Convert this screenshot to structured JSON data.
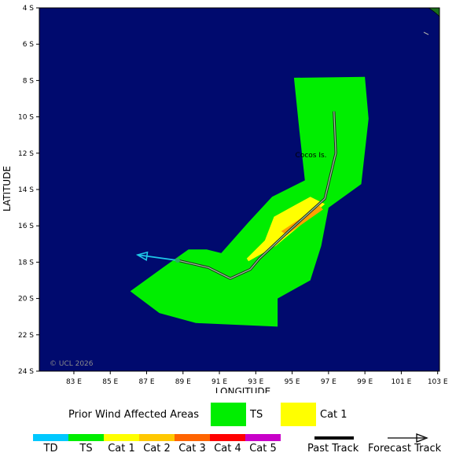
{
  "map": {
    "xlabel": "LONGITUDE",
    "ylabel": "LATITUDE",
    "x_ticks": [
      {
        "lon": 83,
        "label": "83 E"
      },
      {
        "lon": 85,
        "label": "85 E"
      },
      {
        "lon": 87,
        "label": "87 E"
      },
      {
        "lon": 89,
        "label": "89 E"
      },
      {
        "lon": 91,
        "label": "91 E"
      },
      {
        "lon": 93,
        "label": "93 E"
      },
      {
        "lon": 95,
        "label": "95 E"
      },
      {
        "lon": 97,
        "label": "97 E"
      },
      {
        "lon": 99,
        "label": "99 E"
      },
      {
        "lon": 101,
        "label": "101 E"
      },
      {
        "lon": 103,
        "label": "103 E"
      }
    ],
    "y_ticks": [
      {
        "lat": -4,
        "label": "4 S"
      },
      {
        "lat": -6,
        "label": "6 S"
      },
      {
        "lat": -8,
        "label": "8 S"
      },
      {
        "lat": -10,
        "label": "10 S"
      },
      {
        "lat": -12,
        "label": "12 S"
      },
      {
        "lat": -14,
        "label": "14 S"
      },
      {
        "lat": -16,
        "label": "16 S"
      },
      {
        "lat": -18,
        "label": "18 S"
      },
      {
        "lat": -20,
        "label": "20 S"
      },
      {
        "lat": -22,
        "label": "22 S"
      },
      {
        "lat": -24,
        "label": "24 S"
      }
    ],
    "lon_range": [
      81.1,
      103.1
    ],
    "lat_range": [
      -24,
      -4
    ],
    "ocean_color": "#000a6e",
    "place_label": "Cocos Is.",
    "place": {
      "lon": 96.9,
      "lat": -12.1
    },
    "copyright": "© UCL 2026",
    "wind_areas": [
      {
        "category": "TS",
        "color": "#00ee00",
        "polygon": [
          [
            95.1,
            -7.85
          ],
          [
            99.0,
            -7.8
          ],
          [
            99.2,
            -10.1
          ],
          [
            98.8,
            -13.7
          ],
          [
            97.0,
            -15.0
          ],
          [
            96.6,
            -17.1
          ],
          [
            96.0,
            -19.0
          ],
          [
            94.2,
            -20.0
          ],
          [
            94.2,
            -21.55
          ],
          [
            89.7,
            -21.35
          ],
          [
            87.7,
            -20.8
          ],
          [
            86.1,
            -19.6
          ],
          [
            87.9,
            -18.3
          ],
          [
            89.3,
            -17.3
          ],
          [
            90.3,
            -17.3
          ],
          [
            91.1,
            -17.5
          ],
          [
            92.6,
            -15.8
          ],
          [
            93.9,
            -14.4
          ],
          [
            95.7,
            -13.5
          ],
          [
            95.4,
            -10.8
          ]
        ]
      },
      {
        "category": "Cat 1",
        "color": "#ffff00",
        "polygon": [
          [
            96.0,
            -14.4
          ],
          [
            96.8,
            -14.8
          ],
          [
            95.3,
            -16.1
          ],
          [
            94.1,
            -17.1
          ],
          [
            92.6,
            -17.95
          ],
          [
            92.5,
            -17.8
          ],
          [
            93.5,
            -16.8
          ],
          [
            94.0,
            -15.5
          ]
        ]
      }
    ],
    "intensity_band": {
      "color": "#ffa000",
      "polygon": [
        [
          96.5,
          -14.9
        ],
        [
          96.7,
          -15.1
        ],
        [
          94.7,
          -16.5
        ],
        [
          94.4,
          -16.3
        ]
      ]
    },
    "past_track": [
      [
        97.3,
        -9.7
      ],
      [
        97.4,
        -12.0
      ],
      [
        96.8,
        -14.5
      ],
      [
        94.8,
        -16.3
      ],
      [
        93.2,
        -17.8
      ],
      [
        92.7,
        -18.4
      ],
      [
        91.6,
        -18.9
      ],
      [
        90.4,
        -18.3
      ],
      [
        88.7,
        -17.9
      ]
    ],
    "forecast_track": {
      "color": "#1ec8e8",
      "start": [
        88.7,
        -17.9
      ],
      "end": [
        86.5,
        -17.6
      ]
    }
  },
  "legend": {
    "prior_label": "Prior Wind Affected Areas",
    "prior_items": [
      {
        "label": "TS",
        "color": "#00ee00"
      },
      {
        "label": "Cat 1",
        "color": "#ffff00"
      }
    ],
    "scale": [
      {
        "label": "TD",
        "color": "#00c8ff"
      },
      {
        "label": "TS",
        "color": "#00ee00"
      },
      {
        "label": "Cat 1",
        "color": "#ffff00"
      },
      {
        "label": "Cat 2",
        "color": "#ffc800"
      },
      {
        "label": "Cat 3",
        "color": "#ff6400"
      },
      {
        "label": "Cat 4",
        "color": "#ff0000"
      },
      {
        "label": "Cat 5",
        "color": "#c800c8"
      }
    ],
    "past_track_label": "Past Track",
    "forecast_track_label": "Forecast Track"
  }
}
